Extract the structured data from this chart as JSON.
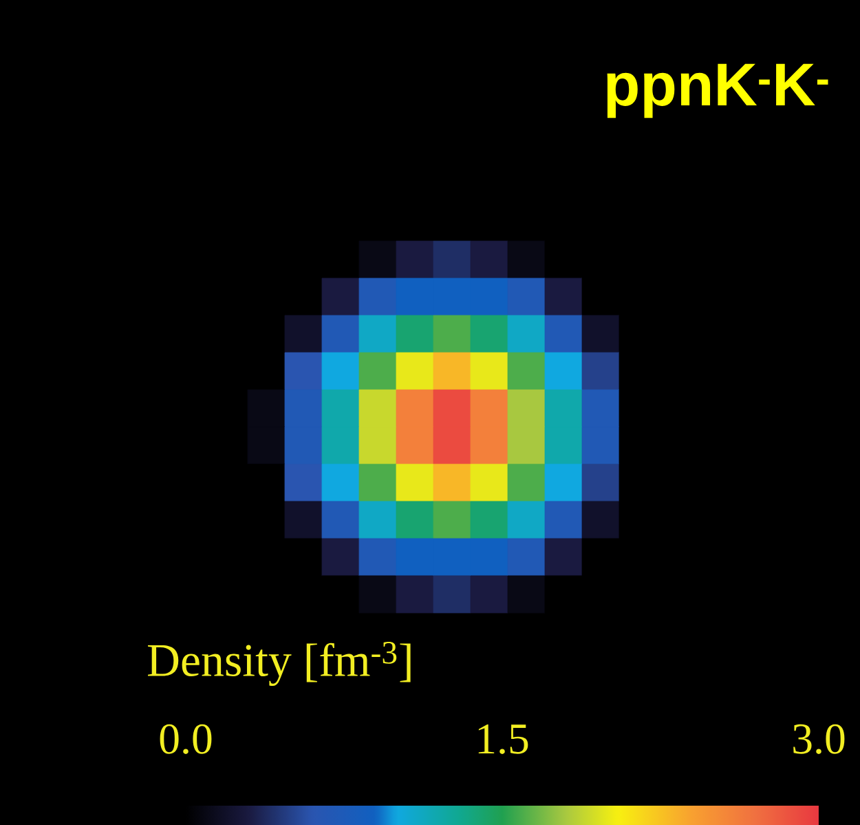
{
  "chart_data": {
    "type": "heatmap",
    "title": "ppnK$^{-}$K$^{-}$",
    "clabel": "Density [fm$^{-3}$]",
    "categories": [
      null,
      null,
      null,
      null,
      null,
      null,
      null,
      null,
      null,
      null,
      null
    ],
    "y_categories": [
      null,
      null,
      null,
      null,
      null,
      null,
      null,
      null,
      null,
      null
    ],
    "cells": [
      [
        0,
        0,
        0,
        0.1,
        0.3,
        0.4,
        0.3,
        0.1,
        0,
        0,
        0
      ],
      [
        0,
        0,
        0.3,
        0.7,
        0.9,
        0.9,
        0.9,
        0.7,
        0.3,
        0,
        0
      ],
      [
        0,
        0.2,
        0.7,
        1.1,
        1.4,
        1.6,
        1.4,
        1.1,
        0.7,
        0.2,
        0
      ],
      [
        0,
        0.6,
        1.0,
        1.6,
        2.0,
        2.3,
        2.0,
        1.6,
        1.0,
        0.5,
        0
      ],
      [
        0.1,
        0.7,
        1.2,
        1.9,
        2.6,
        2.9,
        2.6,
        1.8,
        1.2,
        0.7,
        0
      ],
      [
        0.1,
        0.7,
        1.2,
        1.9,
        2.6,
        2.9,
        2.6,
        1.8,
        1.2,
        0.7,
        0
      ],
      [
        0,
        0.6,
        1.0,
        1.6,
        2.0,
        2.3,
        2.0,
        1.6,
        1.0,
        0.5,
        0
      ],
      [
        0,
        0.2,
        0.7,
        1.1,
        1.4,
        1.6,
        1.4,
        1.1,
        0.7,
        0.2,
        0
      ],
      [
        0,
        0,
        0.3,
        0.7,
        0.9,
        0.9,
        0.9,
        0.7,
        0.3,
        0,
        0
      ],
      [
        0,
        0,
        0,
        0.1,
        0.3,
        0.4,
        0.3,
        0.1,
        0,
        0,
        0
      ]
    ],
    "clim": [
      0,
      3.0
    ],
    "cticks": [
      {
        "value": 0,
        "label": "0.0"
      },
      {
        "value": 1.5,
        "label": "1.5"
      },
      {
        "value": 3.0,
        "label": "3.0"
      }
    ]
  }
}
